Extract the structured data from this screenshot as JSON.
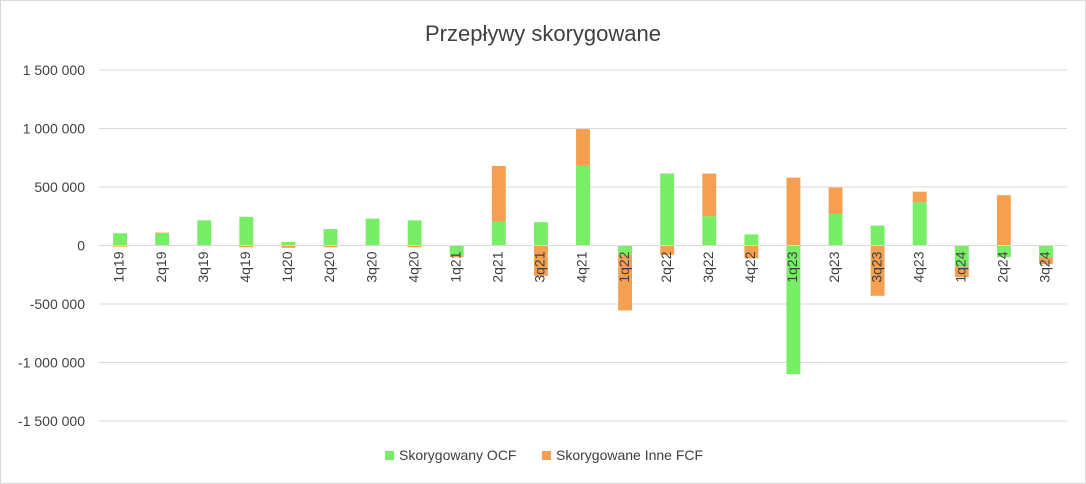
{
  "chart_data": {
    "type": "bar",
    "stacked": true,
    "title": "Przepływy skorygowane",
    "xlabel": "",
    "ylabel": "",
    "ylim": [
      -1500000,
      1500000
    ],
    "yticks": [
      1500000,
      1000000,
      500000,
      0,
      -500000,
      -1000000,
      -1500000
    ],
    "ytick_labels": [
      "1 500 000",
      "1 000 000",
      "500 000",
      "0",
      "-500 000",
      "-1 000 000",
      "-1 500 000"
    ],
    "grid": true,
    "legend_position": "bottom",
    "categories": [
      "1q19",
      "2q19",
      "3q19",
      "4q19",
      "1q20",
      "2q20",
      "3q20",
      "4q20",
      "1q21",
      "2q21",
      "3q21",
      "4q21",
      "1q22",
      "2q22",
      "3q22",
      "4q22",
      "1q23",
      "2q23",
      "3q23",
      "4q23",
      "1q24",
      "2q24",
      "3q24"
    ],
    "series": [
      {
        "name": "Skorygowany OCF",
        "color": "#77ee66",
        "values": [
          105000,
          100000,
          215000,
          245000,
          30000,
          140000,
          230000,
          215000,
          -90000,
          205000,
          200000,
          680000,
          -80000,
          615000,
          250000,
          95000,
          -1100000,
          270000,
          170000,
          370000,
          -180000,
          -100000,
          -100000
        ]
      },
      {
        "name": "Skorygowane Inne FCF",
        "color": "#f4a050",
        "values": [
          -10000,
          10000,
          -5000,
          -15000,
          -20000,
          -15000,
          -5000,
          -15000,
          -10000,
          475000,
          -260000,
          315000,
          -475000,
          -80000,
          365000,
          -110000,
          580000,
          225000,
          -430000,
          90000,
          -90000,
          430000,
          -60000
        ]
      }
    ]
  }
}
